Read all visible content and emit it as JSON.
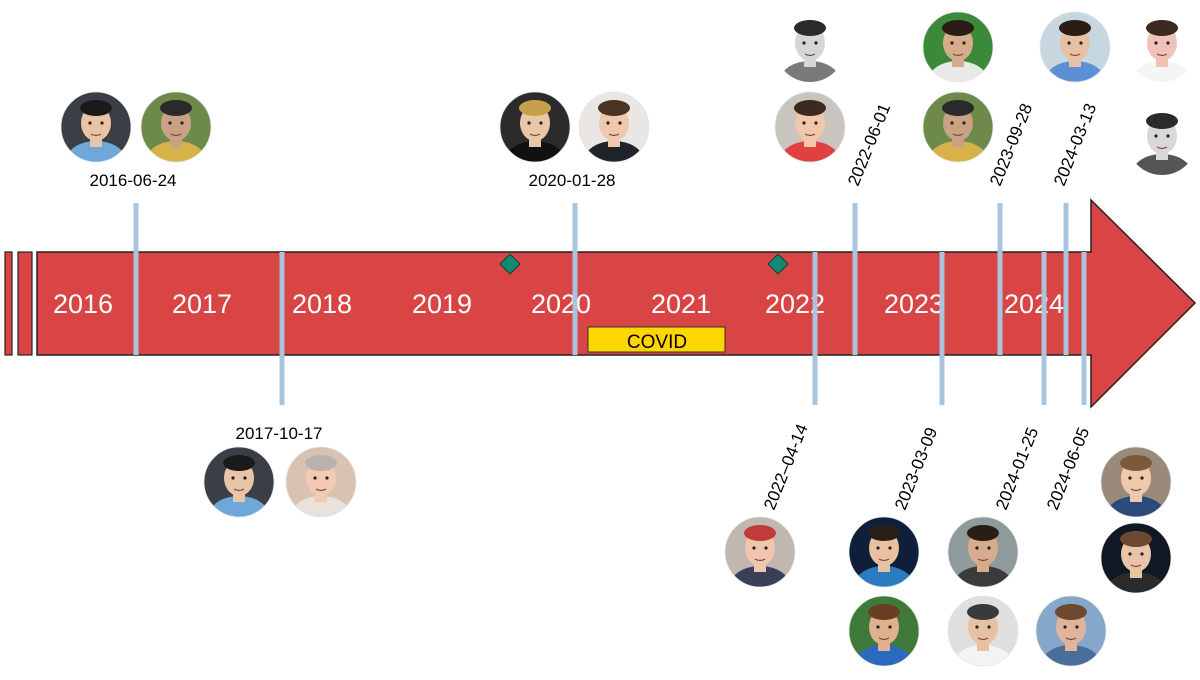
{
  "timeline": {
    "years": [
      "2016",
      "2017",
      "2018",
      "2019",
      "2020",
      "2021",
      "2022",
      "2023",
      "2024"
    ],
    "covid_label": "COVID",
    "colors": {
      "arrow_fill": "#D94545",
      "arrow_stroke": "#222222",
      "marker_line": "#A9C4DC",
      "covid_fill": "#FFD500",
      "milestone_diamond": "#138A72"
    },
    "events_above": [
      {
        "date": "2016-06-24",
        "people": 2
      },
      {
        "date": "2020-01-28",
        "people": 2
      },
      {
        "date": "2022-06-01",
        "people": 2
      },
      {
        "date": "2023-09-28",
        "people": 2
      },
      {
        "date": "2024-03-13",
        "people": 3
      }
    ],
    "events_below": [
      {
        "date": "2017-10-17",
        "people": 2
      },
      {
        "date": "2022–04-14",
        "people": 1
      },
      {
        "date": "2023-03-09",
        "people": 2
      },
      {
        "date": "2024-01-25",
        "people": 2
      },
      {
        "date": "2024-06-05",
        "people": 3
      }
    ]
  }
}
